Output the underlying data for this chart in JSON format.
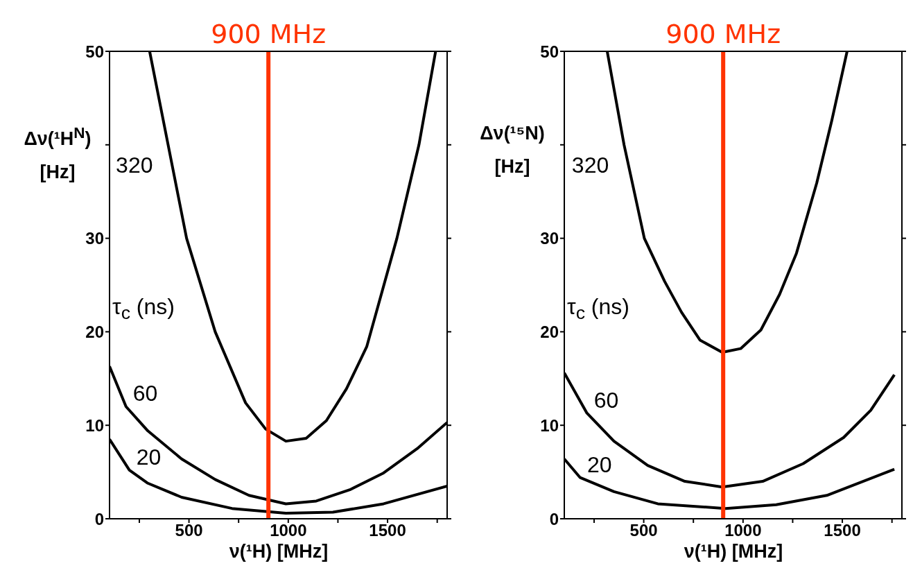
{
  "chart_data": [
    {
      "type": "line",
      "xlabel": "ν(¹H) [MHz]",
      "ylabel": "Δν(¹H$^{N}$) [Hz]",
      "xlim": [
        100,
        1800
      ],
      "ylim": [
        0,
        50
      ],
      "xticks": [
        {
          "value": 250,
          "label": null
        },
        500,
        {
          "value": 750,
          "label": null
        },
        1000,
        {
          "value": 1250,
          "label": null
        },
        1500,
        {
          "value": 1750,
          "label": null
        }
      ],
      "yticks": [
        0,
        10,
        20,
        30,
        {
          "value": 40,
          "label": null
        },
        50
      ],
      "marker": "none",
      "line_style": "solid",
      "annotations": [
        "τ$_{c}$ (ns)"
      ],
      "ref_lines": [
        {
          "axis": "x",
          "value": 900,
          "label": "900 MHz",
          "color": "#ff3300"
        }
      ],
      "series": [
        {
          "name": "320",
          "color": "#000000",
          "x": [
            302,
            395,
            488,
            632,
            785,
            886,
            988,
            1090,
            1192,
            1293,
            1395,
            1547,
            1658,
            1742
          ],
          "values": [
            50,
            40,
            30,
            20,
            12.4,
            9.6,
            8.3,
            8.6,
            10.5,
            13.9,
            18.4,
            30,
            40,
            50
          ]
        },
        {
          "name": "60",
          "color": "#000000",
          "x": [
            100,
            183,
            293,
            463,
            632,
            802,
            988,
            1141,
            1310,
            1480,
            1649,
            1800
          ],
          "values": [
            16.3,
            12.0,
            9.4,
            6.4,
            4.2,
            2.5,
            1.6,
            1.9,
            3.1,
            4.9,
            7.5,
            10.3
          ]
        },
        {
          "name": "20",
          "color": "#000000",
          "x": [
            100,
            200,
            293,
            463,
            717,
            988,
            1225,
            1480,
            1800
          ],
          "values": [
            8.5,
            5.2,
            3.8,
            2.3,
            1.1,
            0.6,
            0.7,
            1.6,
            3.5
          ]
        }
      ]
    },
    {
      "type": "line",
      "xlabel": "ν(¹H) [MHz]",
      "ylabel": "Δν(¹⁵N) [Hz]",
      "xlim": [
        100,
        1800
      ],
      "ylim": [
        0,
        50
      ],
      "xticks": [
        {
          "value": 250,
          "label": null
        },
        500,
        {
          "value": 750,
          "label": null
        },
        1000,
        {
          "value": 1250,
          "label": null
        },
        1500,
        {
          "value": 1750,
          "label": null
        }
      ],
      "yticks": [
        0,
        10,
        20,
        30,
        {
          "value": 40,
          "label": null
        },
        50
      ],
      "marker": "none",
      "line_style": "solid",
      "annotations": [
        "τ$_{c}$ (ns)"
      ],
      "ref_lines": [
        {
          "axis": "x",
          "value": 900,
          "label": "900 MHz",
          "color": "#ff3300"
        }
      ],
      "series": [
        {
          "name": "320",
          "color": "#000000",
          "x": [
            316,
            401,
            503,
            605,
            690,
            784,
            895,
            988,
            1090,
            1184,
            1269,
            1371,
            1447,
            1524
          ],
          "values": [
            50,
            40,
            30,
            25.4,
            22.1,
            19.1,
            17.8,
            18.2,
            20.2,
            24.0,
            28.4,
            35.9,
            42.6,
            50
          ]
        },
        {
          "name": "60",
          "color": "#000000",
          "x": [
            100,
            214,
            350,
            520,
            707,
            895,
            1099,
            1303,
            1507,
            1643,
            1762
          ],
          "values": [
            15.6,
            11.3,
            8.3,
            5.7,
            4.0,
            3.4,
            4.0,
            5.9,
            8.7,
            11.6,
            15.4
          ]
        },
        {
          "name": "20",
          "color": "#000000",
          "x": [
            100,
            180,
            350,
            571,
            912,
            1167,
            1422,
            1762
          ],
          "values": [
            6.4,
            4.4,
            2.9,
            1.6,
            1.1,
            1.5,
            2.5,
            5.3
          ]
        }
      ]
    }
  ]
}
